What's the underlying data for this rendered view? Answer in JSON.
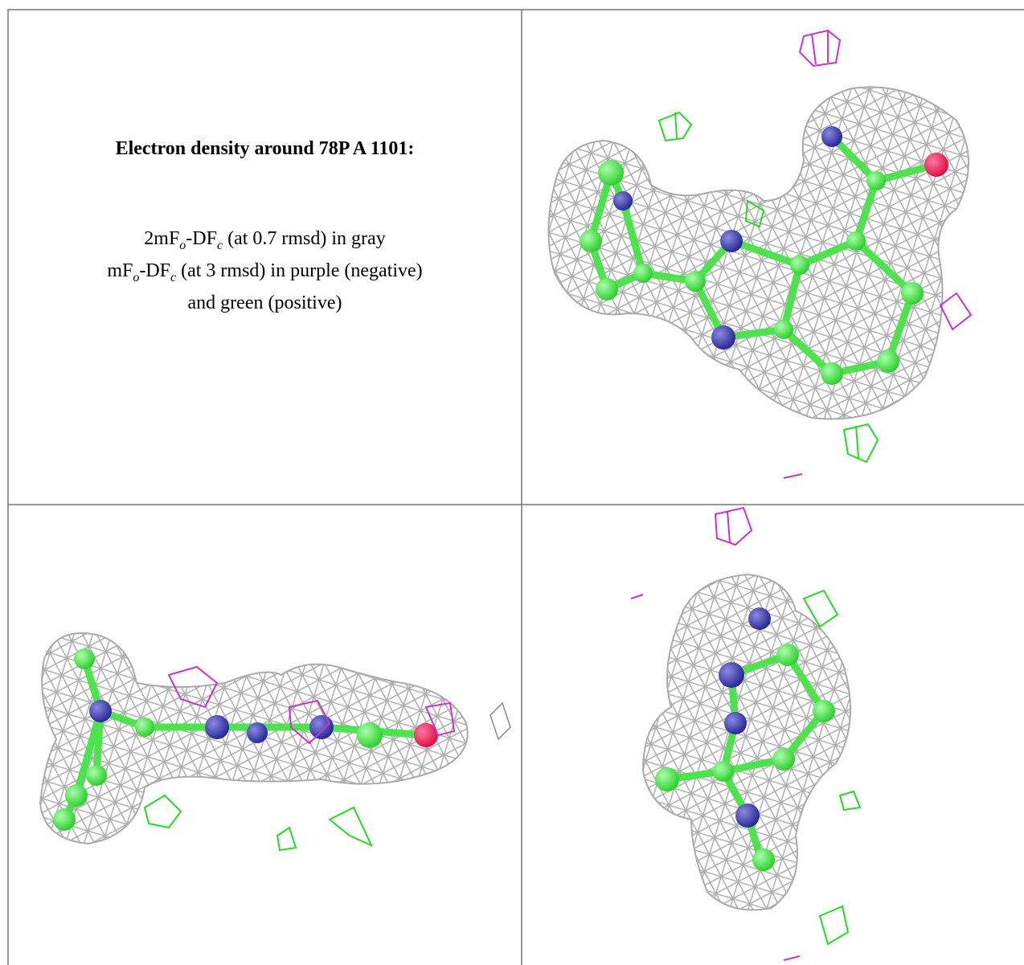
{
  "caption": {
    "title": "Electron density around 78P A 1101:",
    "line1": [
      "2mF",
      "o",
      "-DF",
      "c",
      " (at 0.7 rmsd) in gray"
    ],
    "line2": [
      "mF",
      "o",
      "-DF",
      "c",
      " (at 3 rmsd) in purple (negative)"
    ],
    "line3": "and green (positive)"
  }
}
